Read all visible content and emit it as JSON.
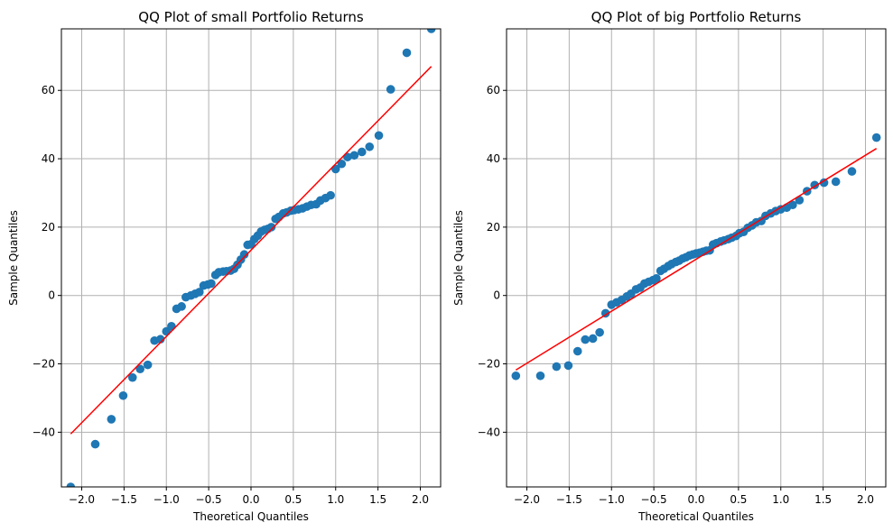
{
  "chart_data": [
    {
      "type": "scatter",
      "title": "QQ Plot of small Portfolio Returns",
      "xlabel": "Theoretical Quantiles",
      "ylabel": "Sample Quantiles",
      "xlim": [
        -2.24,
        2.24
      ],
      "ylim": [
        -56,
        78
      ],
      "xticks": [
        -2.0,
        -1.5,
        -1.0,
        -0.5,
        0.0,
        0.5,
        1.0,
        1.5,
        2.0
      ],
      "xtick_labels": [
        "−2.0",
        "−1.5",
        "−1.0",
        "−0.5",
        "0.0",
        "0.5",
        "1.0",
        "1.5",
        "2.0"
      ],
      "yticks": [
        -40,
        -20,
        0,
        20,
        40,
        60
      ],
      "ytick_labels": [
        "−40",
        "−20",
        "0",
        "20",
        "40",
        "60"
      ],
      "grid": true,
      "marker_color": "#1f77b4",
      "line_color": "#ff0000",
      "reference_line": {
        "x": [
          -2.13,
          2.13
        ],
        "y": [
          -40.5,
          67.0
        ]
      },
      "points": [
        [
          -2.13,
          -56.0
        ],
        [
          -1.84,
          -43.5
        ],
        [
          -1.65,
          -36.2
        ],
        [
          -1.51,
          -29.3
        ],
        [
          -1.4,
          -24.0
        ],
        [
          -1.31,
          -21.5
        ],
        [
          -1.22,
          -20.3
        ],
        [
          -1.14,
          -13.2
        ],
        [
          -1.07,
          -12.8
        ],
        [
          -1.0,
          -10.5
        ],
        [
          -0.94,
          -9.0
        ],
        [
          -0.88,
          -3.9
        ],
        [
          -0.82,
          -3.2
        ],
        [
          -0.77,
          -0.5
        ],
        [
          -0.71,
          0.0
        ],
        [
          -0.66,
          0.5
        ],
        [
          -0.61,
          1.0
        ],
        [
          -0.56,
          2.9
        ],
        [
          -0.51,
          3.2
        ],
        [
          -0.47,
          3.5
        ],
        [
          -0.42,
          6.0
        ],
        [
          -0.38,
          6.8
        ],
        [
          -0.33,
          7.0
        ],
        [
          -0.29,
          7.1
        ],
        [
          -0.24,
          7.3
        ],
        [
          -0.2,
          7.8
        ],
        [
          -0.16,
          9.0
        ],
        [
          -0.12,
          10.5
        ],
        [
          -0.08,
          12.0
        ],
        [
          -0.04,
          14.8
        ],
        [
          0.0,
          15.0
        ],
        [
          0.04,
          16.5
        ],
        [
          0.08,
          17.5
        ],
        [
          0.12,
          18.7
        ],
        [
          0.16,
          19.2
        ],
        [
          0.2,
          19.5
        ],
        [
          0.24,
          20.0
        ],
        [
          0.29,
          22.4
        ],
        [
          0.33,
          23.0
        ],
        [
          0.38,
          24.0
        ],
        [
          0.42,
          24.3
        ],
        [
          0.47,
          24.8
        ],
        [
          0.51,
          25.0
        ],
        [
          0.56,
          25.2
        ],
        [
          0.61,
          25.5
        ],
        [
          0.66,
          26.0
        ],
        [
          0.71,
          26.5
        ],
        [
          0.77,
          26.7
        ],
        [
          0.82,
          27.8
        ],
        [
          0.88,
          28.5
        ],
        [
          0.94,
          29.3
        ],
        [
          1.0,
          37.0
        ],
        [
          1.07,
          38.5
        ],
        [
          1.14,
          40.5
        ],
        [
          1.22,
          41.0
        ],
        [
          1.31,
          42.0
        ],
        [
          1.4,
          43.5
        ],
        [
          1.51,
          46.8
        ],
        [
          1.65,
          60.3
        ],
        [
          1.84,
          71.0
        ],
        [
          2.13,
          78.0
        ]
      ]
    },
    {
      "type": "scatter",
      "title": "QQ Plot of big Portfolio Returns",
      "xlabel": "Theoretical Quantiles",
      "ylabel": "Sample Quantiles",
      "xlim": [
        -2.24,
        2.24
      ],
      "ylim": [
        -56,
        78
      ],
      "xticks": [
        -2.0,
        -1.5,
        -1.0,
        -0.5,
        0.0,
        0.5,
        1.0,
        1.5,
        2.0
      ],
      "xtick_labels": [
        "−2.0",
        "−1.5",
        "−1.0",
        "−0.5",
        "0.0",
        "0.5",
        "1.0",
        "1.5",
        "2.0"
      ],
      "yticks": [
        -40,
        -20,
        0,
        20,
        40,
        60
      ],
      "ytick_labels": [
        "−40",
        "−20",
        "0",
        "20",
        "40",
        "60"
      ],
      "grid": true,
      "marker_color": "#1f77b4",
      "line_color": "#ff0000",
      "reference_line": {
        "x": [
          -2.13,
          2.13
        ],
        "y": [
          -21.8,
          43.0
        ]
      },
      "points": [
        [
          -2.13,
          -23.5
        ],
        [
          -1.84,
          -23.5
        ],
        [
          -1.65,
          -20.8
        ],
        [
          -1.51,
          -20.5
        ],
        [
          -1.4,
          -16.3
        ],
        [
          -1.31,
          -12.9
        ],
        [
          -1.22,
          -12.6
        ],
        [
          -1.14,
          -10.8
        ],
        [
          -1.07,
          -5.2
        ],
        [
          -1.0,
          -2.7
        ],
        [
          -0.94,
          -2.0
        ],
        [
          -0.88,
          -1.3
        ],
        [
          -0.82,
          -0.3
        ],
        [
          -0.77,
          0.5
        ],
        [
          -0.71,
          1.8
        ],
        [
          -0.66,
          2.3
        ],
        [
          -0.61,
          3.5
        ],
        [
          -0.56,
          4.0
        ],
        [
          -0.51,
          4.5
        ],
        [
          -0.47,
          5.0
        ],
        [
          -0.42,
          7.2
        ],
        [
          -0.38,
          7.8
        ],
        [
          -0.33,
          8.6
        ],
        [
          -0.29,
          9.2
        ],
        [
          -0.24,
          9.8
        ],
        [
          -0.2,
          10.2
        ],
        [
          -0.16,
          10.8
        ],
        [
          -0.12,
          11.2
        ],
        [
          -0.08,
          11.7
        ],
        [
          -0.04,
          12.0
        ],
        [
          0.0,
          12.3
        ],
        [
          0.04,
          12.5
        ],
        [
          0.08,
          12.8
        ],
        [
          0.12,
          13.1
        ],
        [
          0.16,
          13.2
        ],
        [
          0.2,
          14.9
        ],
        [
          0.24,
          15.3
        ],
        [
          0.29,
          15.8
        ],
        [
          0.33,
          16.1
        ],
        [
          0.38,
          16.5
        ],
        [
          0.42,
          16.9
        ],
        [
          0.47,
          17.4
        ],
        [
          0.51,
          18.2
        ],
        [
          0.56,
          18.6
        ],
        [
          0.61,
          19.8
        ],
        [
          0.66,
          20.5
        ],
        [
          0.71,
          21.4
        ],
        [
          0.77,
          21.8
        ],
        [
          0.82,
          23.3
        ],
        [
          0.88,
          24.0
        ],
        [
          0.94,
          24.7
        ],
        [
          1.0,
          25.2
        ],
        [
          1.07,
          25.7
        ],
        [
          1.14,
          26.5
        ],
        [
          1.22,
          27.9
        ],
        [
          1.31,
          30.5
        ],
        [
          1.4,
          32.3
        ],
        [
          1.51,
          33.0
        ],
        [
          1.65,
          33.3
        ],
        [
          1.84,
          36.3
        ],
        [
          2.13,
          46.2
        ]
      ]
    }
  ]
}
